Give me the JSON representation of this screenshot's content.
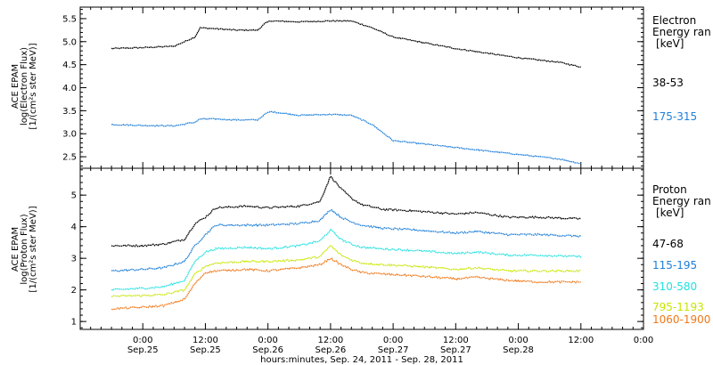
{
  "chart_data": [
    {
      "type": "line",
      "panel": "electron",
      "ylabel": [
        "ACE EPAM",
        "log(Electron Flux)",
        "[1/(cm²s ster MeV)]"
      ],
      "ylim": [
        2.25,
        5.75
      ],
      "yticks": [
        2.5,
        3.0,
        3.5,
        4.0,
        4.5,
        5.0,
        5.5
      ],
      "ytick_labels": [
        "2.5",
        "3.0",
        "3.5",
        "4.0",
        "4.5",
        "5.0",
        "5.5"
      ],
      "legend_title": [
        "Electron",
        "Energy ran",
        "[keV]"
      ],
      "x_hours": [
        -6,
        0,
        6,
        10,
        11,
        14,
        18,
        22,
        23.5,
        24.5,
        30,
        36,
        40,
        44,
        48,
        60,
        72,
        80,
        84
      ],
      "series": [
        {
          "name": "38-53",
          "color": "#000000",
          "values": [
            4.85,
            4.87,
            4.9,
            5.1,
            5.3,
            5.28,
            5.25,
            5.25,
            5.4,
            5.45,
            5.43,
            5.45,
            5.45,
            5.3,
            5.1,
            4.85,
            4.65,
            4.55,
            4.45
          ]
        },
        {
          "name": "175-315",
          "color": "#1e7fd8",
          "values": [
            3.2,
            3.18,
            3.17,
            3.25,
            3.32,
            3.32,
            3.3,
            3.3,
            3.43,
            3.48,
            3.4,
            3.42,
            3.4,
            3.2,
            2.85,
            2.7,
            2.55,
            2.45,
            2.35
          ]
        }
      ]
    },
    {
      "type": "line",
      "panel": "proton",
      "ylabel": [
        "ACE EPAM",
        "log(Proton Flux)",
        "[1/(cm²s ster MeV)]"
      ],
      "ylim": [
        0.75,
        5.85
      ],
      "yticks": [
        1,
        2,
        3,
        4,
        5
      ],
      "ytick_labels": [
        "1",
        "2",
        "3",
        "4",
        "5"
      ],
      "legend_title": [
        "Proton",
        "Energy ran",
        "[keV]"
      ],
      "x_hours": [
        -6,
        0,
        4,
        8,
        10,
        12,
        14,
        20,
        24,
        30,
        34,
        36,
        38,
        40,
        42,
        46,
        52,
        60,
        64,
        70,
        76,
        84
      ],
      "series": [
        {
          "name": "47-68",
          "color": "#000000",
          "values": [
            3.4,
            3.4,
            3.45,
            3.6,
            4.1,
            4.3,
            4.6,
            4.65,
            4.6,
            4.65,
            4.8,
            5.6,
            5.2,
            4.9,
            4.7,
            4.55,
            4.5,
            4.4,
            4.45,
            4.3,
            4.3,
            4.25
          ]
        },
        {
          "name": "115-195",
          "color": "#1e7fd8",
          "values": [
            2.6,
            2.65,
            2.7,
            2.9,
            3.4,
            3.75,
            4.05,
            4.05,
            4.05,
            4.1,
            4.2,
            4.55,
            4.3,
            4.15,
            4.05,
            3.95,
            3.9,
            3.8,
            3.85,
            3.75,
            3.75,
            3.7
          ]
        },
        {
          "name": "310-580",
          "color": "#22e0e0",
          "values": [
            2.0,
            2.05,
            2.1,
            2.3,
            2.9,
            3.2,
            3.3,
            3.35,
            3.3,
            3.4,
            3.55,
            3.9,
            3.6,
            3.45,
            3.35,
            3.3,
            3.25,
            3.15,
            3.2,
            3.1,
            3.1,
            3.05
          ]
        },
        {
          "name": "795-1193",
          "color": "#c8e600",
          "values": [
            1.8,
            1.82,
            1.85,
            2.0,
            2.5,
            2.75,
            2.85,
            2.9,
            2.9,
            2.95,
            3.05,
            3.4,
            3.1,
            2.95,
            2.85,
            2.8,
            2.75,
            2.65,
            2.7,
            2.6,
            2.6,
            2.6
          ]
        },
        {
          "name": "1060-1900",
          "color": "#f07818",
          "values": [
            1.4,
            1.45,
            1.5,
            1.7,
            2.2,
            2.55,
            2.6,
            2.65,
            2.6,
            2.7,
            2.8,
            3.0,
            2.8,
            2.65,
            2.55,
            2.5,
            2.45,
            2.35,
            2.4,
            2.3,
            2.25,
            2.25
          ]
        }
      ]
    }
  ],
  "x_axis": {
    "range_hours": [
      -12,
      96
    ],
    "major_ticks_hours": [
      0,
      12,
      24,
      36,
      48,
      60,
      72,
      84,
      96
    ],
    "tick_labels_time": [
      "0:00",
      "12:00",
      "0:00",
      "12:00",
      "0:00",
      "12:00",
      "0:00",
      "12:00",
      "0:00"
    ],
    "tick_labels_date": [
      "Sep.25",
      "Sep.25",
      "Sep.26",
      "Sep.26",
      "Sep.27",
      "Sep.27",
      "Sep.28",
      "",
      ""
    ],
    "minor_step_hours": 2,
    "xlabel": "hours:minutes, Sep. 24, 2011 - Sep. 28, 2011"
  }
}
